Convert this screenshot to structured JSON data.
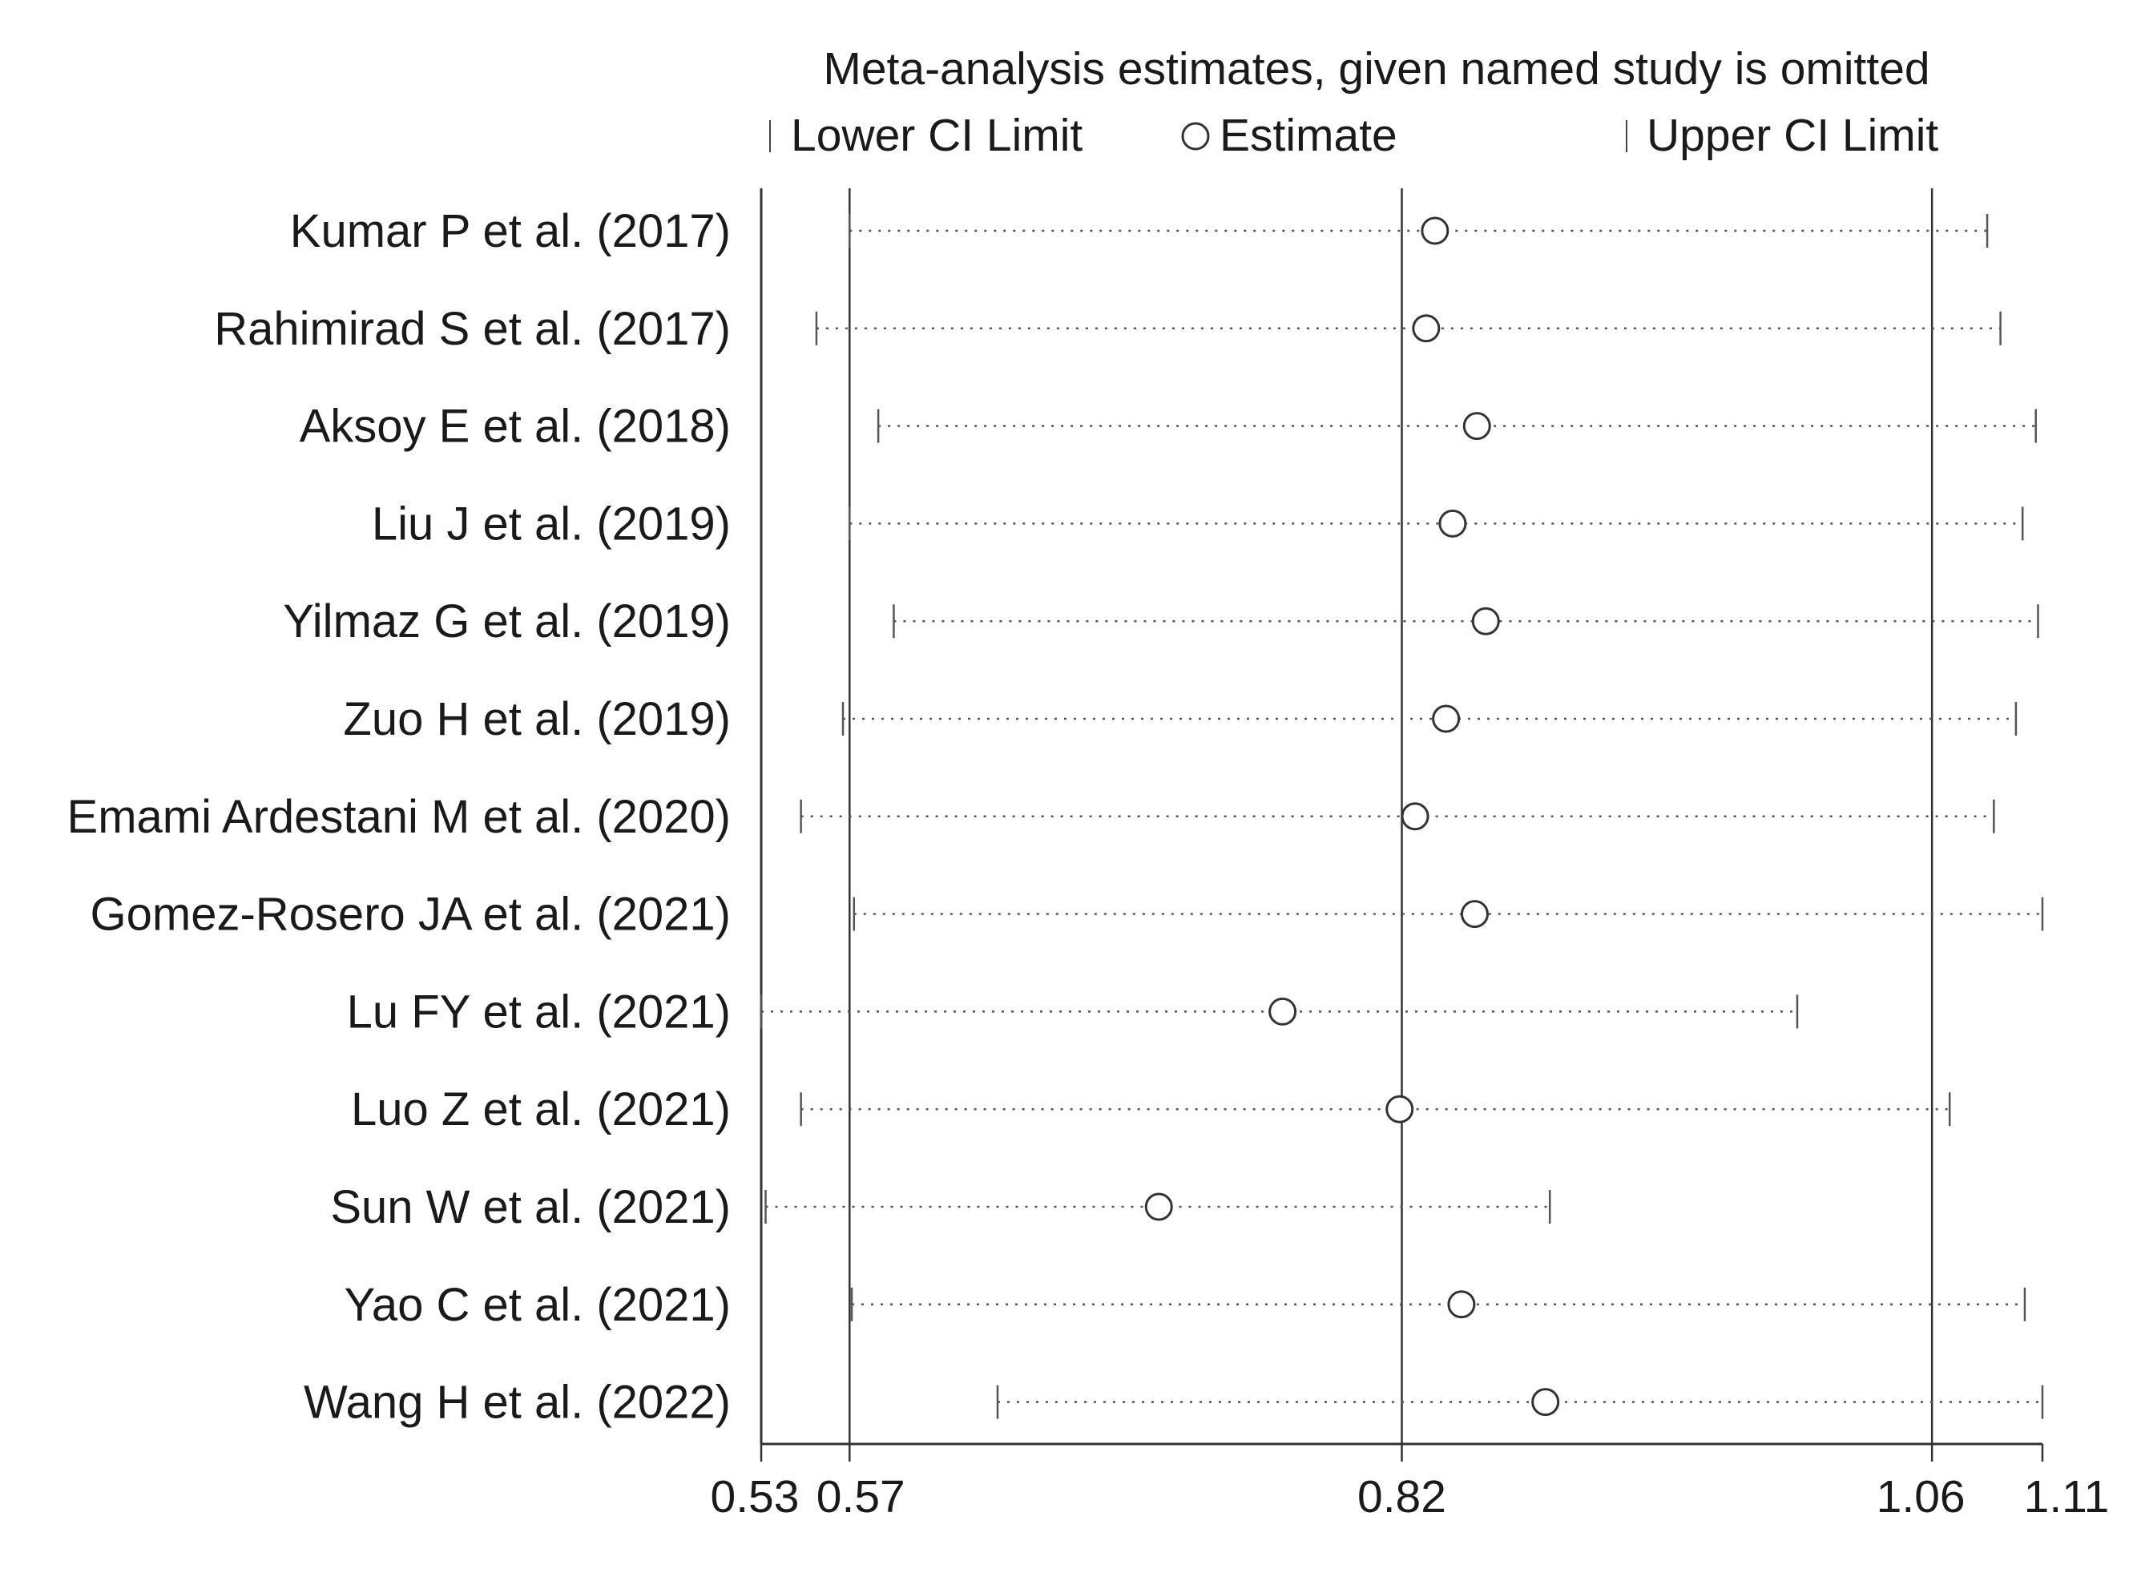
{
  "chart_data": {
    "type": "scatter",
    "title": "Meta-analysis estimates, given named study is omitted",
    "legend": {
      "placement": "top",
      "items": [
        "Lower CI Limit",
        "Estimate",
        "Upper CI Limit"
      ]
    },
    "xlim": [
      0.53,
      1.11
    ],
    "xticks": [
      0.53,
      0.57,
      0.82,
      1.06,
      1.11
    ],
    "xtick_labels": [
      "0.53",
      "0.57",
      "0.82",
      "1.06",
      "1.11"
    ],
    "reference_lines": [
      0.57,
      0.82,
      1.06
    ],
    "grid": false,
    "studies": [
      {
        "label": "Kumar P et al. (2017)",
        "lower": 0.57,
        "estimate": 0.835,
        "upper": 1.085
      },
      {
        "label": "Rahimirad S et al. (2017)",
        "lower": 0.555,
        "estimate": 0.831,
        "upper": 1.091
      },
      {
        "label": "Aksoy E et al. (2018)",
        "lower": 0.583,
        "estimate": 0.854,
        "upper": 1.107
      },
      {
        "label": "Liu J et al. (2019)",
        "lower": 0.57,
        "estimate": 0.843,
        "upper": 1.101
      },
      {
        "label": "Yilmaz G et al. (2019)",
        "lower": 0.59,
        "estimate": 0.858,
        "upper": 1.108
      },
      {
        "label": "Zuo H et al. (2019)",
        "lower": 0.567,
        "estimate": 0.84,
        "upper": 1.098
      },
      {
        "label": "Emami Ardestani M et al. (2020)",
        "lower": 0.548,
        "estimate": 0.826,
        "upper": 1.088
      },
      {
        "label": "Gomez-Rosero JA et al. (2021)",
        "lower": 0.572,
        "estimate": 0.853,
        "upper": 1.11
      },
      {
        "label": "Lu FY et al. (2021)",
        "lower": 0.53,
        "estimate": 0.766,
        "upper": 0.999
      },
      {
        "label": "Luo Z et al. (2021)",
        "lower": 0.548,
        "estimate": 0.819,
        "upper": 1.068
      },
      {
        "label": "Sun W et al. (2021)",
        "lower": 0.532,
        "estimate": 0.71,
        "upper": 0.887
      },
      {
        "label": "Yao C et al. (2021)",
        "lower": 0.571,
        "estimate": 0.847,
        "upper": 1.102
      },
      {
        "label": "Wang H et al. (2022)",
        "lower": 0.637,
        "estimate": 0.885,
        "upper": 1.11
      }
    ]
  }
}
